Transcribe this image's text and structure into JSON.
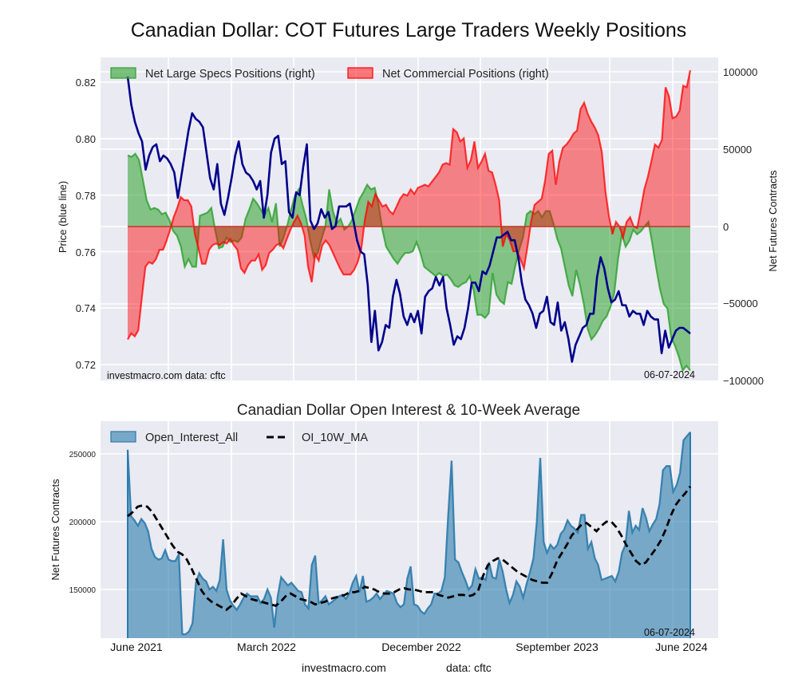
{
  "title": "Canadian Dollar: COT Futures Large Traders Weekly Positions",
  "footer": {
    "site": "investmacro.com",
    "source": "data: cftc"
  },
  "chart_data": [
    {
      "type": "area",
      "title": "Canadian Dollar: COT Futures Large Traders Weekly Positions",
      "ylabel_left": "Price (blue line)",
      "ylabel_right": "Net Futures Contracts",
      "ylim_left": [
        0.715,
        0.829
      ],
      "ylim_right": [
        -100000,
        100000
      ],
      "yticks_left": [
        "0.72",
        "0.74",
        "0.76",
        "0.78",
        "0.80",
        "0.82"
      ],
      "yticks_right": [
        "100000",
        "50000",
        "0",
        "−50000",
        "−100000"
      ],
      "xticks": [
        "June 2021",
        "March 2022",
        "December 2022",
        "September 2023",
        "June 2024"
      ],
      "grid": true,
      "legend": "top-left",
      "annotations": {
        "left": "investmacro.com   data: cftc",
        "right": "06-07-2024"
      },
      "series": [
        {
          "name": "Net Large Specs Positions (right)",
          "kind": "area",
          "color": "#2ca02c",
          "values": [
            46000,
            45000,
            47000,
            43000,
            30000,
            17000,
            11000,
            12000,
            11000,
            8000,
            9000,
            4000,
            -3000,
            -6000,
            -13000,
            -26000,
            -21000,
            -26000,
            -26000,
            7000,
            8000,
            9000,
            12000,
            -2000,
            -14000,
            -13000,
            -7000,
            -10000,
            -9000,
            -10000,
            -7000,
            5000,
            11000,
            18000,
            15000,
            11000,
            7000,
            12000,
            3000,
            15000,
            -13000,
            -7000,
            1000,
            11000,
            20000,
            24000,
            14000,
            5000,
            -9000,
            -20000,
            -17000,
            -8000,
            0,
            24000,
            10000,
            2000,
            5000,
            -2000,
            0,
            4000,
            11000,
            18000,
            22000,
            27000,
            24000,
            25000,
            14000,
            -2000,
            -13000,
            -17000,
            -21000,
            -24000,
            -20000,
            -17000,
            -17000,
            -16000,
            -10000,
            -17000,
            -26000,
            -28000,
            -30000,
            -32000,
            -30000,
            -32000,
            -31000,
            -34000,
            -38000,
            -39000,
            -37000,
            -36000,
            -32000,
            -41000,
            -57000,
            -57000,
            -59000,
            -56000,
            -30000,
            -44000,
            -48000,
            -50000,
            -36000,
            -37000,
            -25000,
            -15000,
            -7000,
            8000,
            10000,
            8000,
            10000,
            6000,
            10000,
            10000,
            2000,
            -8000,
            -14000,
            -26000,
            -38000,
            -45000,
            -28000,
            -38000,
            -50000,
            -66000,
            -73000,
            -70000,
            -66000,
            -61000,
            -58000,
            -52000,
            -43000,
            -21000,
            -5000,
            -13000,
            -9000,
            -2000,
            -5000,
            -3000,
            0,
            3000,
            -11000,
            -26000,
            -40000,
            -50000,
            -53000,
            -72000,
            -77000,
            -84000,
            -93000,
            -90000,
            -93000
          ]
        },
        {
          "name": "Net Commercial Positions (right)",
          "kind": "area",
          "color": "#ff0000",
          "values": [
            -73000,
            -69000,
            -71000,
            -67000,
            -46000,
            -26000,
            -23000,
            -24000,
            -21000,
            -15000,
            -15000,
            -9000,
            -2000,
            6000,
            12000,
            19000,
            17000,
            17000,
            13000,
            -5000,
            -14000,
            -24000,
            -24000,
            -15000,
            -12000,
            -11000,
            -12000,
            -10000,
            -11000,
            -8000,
            -12000,
            -15000,
            -27000,
            -30000,
            -25000,
            -22000,
            -22000,
            -18000,
            -28000,
            -25000,
            -17000,
            -15000,
            -12000,
            -11000,
            -14000,
            -8000,
            -2000,
            3000,
            7000,
            2000,
            -6000,
            -26000,
            -36000,
            -18000,
            -22000,
            -12000,
            -9000,
            -12000,
            -17000,
            -22000,
            -27000,
            -31000,
            -31000,
            -31000,
            -28000,
            -23000,
            -15000,
            4000,
            16000,
            13000,
            21000,
            17000,
            13000,
            14000,
            10000,
            8000,
            13000,
            18000,
            21000,
            20000,
            24000,
            21000,
            25000,
            26000,
            27000,
            26000,
            29000,
            32000,
            35000,
            40000,
            41000,
            40000,
            63000,
            61000,
            55000,
            57000,
            38000,
            43000,
            55000,
            38000,
            42000,
            47000,
            36000,
            35000,
            27000,
            17000,
            -13000,
            -5000,
            -9000,
            -16000,
            -16000,
            -21000,
            -27000,
            -13000,
            3000,
            14000,
            16000,
            18000,
            30000,
            47000,
            49000,
            27000,
            42000,
            51000,
            53000,
            56000,
            60000,
            62000,
            76000,
            80000,
            73000,
            68000,
            64000,
            59000,
            48000,
            23000,
            7000,
            -5000,
            3000,
            0,
            -7000,
            3000,
            6000,
            0,
            -1000,
            11000,
            24000,
            32000,
            42000,
            53000,
            51000,
            56000,
            90000,
            84000,
            70000,
            71000,
            75000,
            91000,
            90000,
            101000
          ]
        },
        {
          "name": "Price (blue line)",
          "kind": "line",
          "color": "#00008b",
          "values": [
            0.822,
            0.812,
            0.806,
            0.802,
            0.799,
            0.789,
            0.794,
            0.797,
            0.798,
            0.792,
            0.794,
            0.793,
            0.791,
            0.788,
            0.779,
            0.787,
            0.795,
            0.803,
            0.809,
            0.807,
            0.806,
            0.804,
            0.795,
            0.786,
            0.782,
            0.791,
            0.777,
            0.773,
            0.779,
            0.786,
            0.794,
            0.799,
            0.791,
            0.788,
            0.787,
            0.785,
            0.782,
            0.785,
            0.772,
            0.78,
            0.795,
            0.8,
            0.801,
            0.791,
            0.792,
            0.774,
            0.772,
            0.781,
            0.78,
            0.79,
            0.798,
            0.771,
            0.768,
            0.77,
            0.775,
            0.772,
            0.774,
            0.768,
            0.769,
            0.776,
            0.776,
            0.776,
            0.777,
            0.771,
            0.764,
            0.76,
            0.759,
            0.748,
            0.728,
            0.739,
            0.725,
            0.728,
            0.734,
            0.733,
            0.744,
            0.75,
            0.745,
            0.737,
            0.734,
            0.738,
            0.735,
            0.739,
            0.731,
            0.744,
            0.746,
            0.747,
            0.751,
            0.748,
            0.751,
            0.74,
            0.734,
            0.727,
            0.73,
            0.729,
            0.733,
            0.74,
            0.749,
            0.749,
            0.746,
            0.753,
            0.752,
            0.755,
            0.76,
            0.765,
            0.765,
            0.766,
            0.767,
            0.764,
            0.764,
            0.758,
            0.749,
            0.743,
            0.741,
            0.738,
            0.733,
            0.738,
            0.739,
            0.744,
            0.735,
            0.734,
            0.742,
            0.732,
            0.735,
            0.729,
            0.721,
            0.727,
            0.73,
            0.733,
            0.734,
            0.738,
            0.738,
            0.751,
            0.758,
            0.754,
            0.747,
            0.742,
            0.743,
            0.746,
            0.741,
            0.741,
            0.737,
            0.739,
            0.738,
            0.738,
            0.734,
            0.739,
            0.737,
            0.736,
            0.736,
            0.724,
            0.732,
            0.726,
            0.729,
            0.732,
            0.733,
            0.733,
            0.732,
            0.731
          ]
        }
      ]
    },
    {
      "type": "area",
      "title": "Canadian Dollar Open Interest & 10-Week Average",
      "ylabel": "Net Futures Contracts",
      "ylim": [
        115000,
        275000
      ],
      "yticks": [
        "250000",
        "200000",
        "150000"
      ],
      "xticks": [
        "June 2021",
        "March 2022",
        "December 2022",
        "September 2023",
        "June 2024"
      ],
      "grid": true,
      "legend": "top-left",
      "annotations": {
        "right": "06-07-2024"
      },
      "series": [
        {
          "name": "Open_Interest_All",
          "kind": "area",
          "color": "#2b7bab",
          "values": [
            253000,
            204000,
            201000,
            197000,
            202000,
            199000,
            193000,
            180000,
            174000,
            172000,
            173000,
            179000,
            172000,
            171000,
            171000,
            176000,
            117000,
            117000,
            119000,
            125000,
            155000,
            162000,
            158000,
            156000,
            150000,
            152000,
            149000,
            157000,
            187000,
            150000,
            142000,
            138000,
            135000,
            139000,
            144000,
            147000,
            145000,
            145000,
            145000,
            140000,
            143000,
            150000,
            144000,
            122000,
            145000,
            159000,
            156000,
            153000,
            155000,
            152000,
            149000,
            148000,
            139000,
            136000,
            168000,
            175000,
            140000,
            142000,
            145000,
            139000,
            141000,
            143000,
            145000,
            146000,
            143000,
            147000,
            155000,
            160000,
            148000,
            160000,
            141000,
            142000,
            144000,
            147000,
            143000,
            146000,
            149000,
            148000,
            147000,
            140000,
            137000,
            139000,
            158000,
            167000,
            139000,
            138000,
            134000,
            132000,
            136000,
            139000,
            147000,
            147000,
            149000,
            159000,
            204000,
            245000,
            172000,
            170000,
            163000,
            157000,
            150000,
            153000,
            165000,
            158000,
            159000,
            157000,
            170000,
            159000,
            158000,
            172000,
            163000,
            150000,
            140000,
            146000,
            156000,
            152000,
            144000,
            154000,
            163000,
            173000,
            200000,
            247000,
            185000,
            177000,
            183000,
            180000,
            183000,
            191000,
            194000,
            201000,
            197000,
            195000,
            192000,
            205000,
            205000,
            180000,
            185000,
            173000,
            168000,
            157000,
            158000,
            159000,
            160000,
            156000,
            163000,
            177000,
            183000,
            208000,
            192000,
            197000,
            194000,
            210000,
            203000,
            193000,
            198000,
            202000,
            213000,
            238000,
            241000,
            241000,
            222000,
            227000,
            236000,
            260000,
            263000,
            266000
          ],
          "note": "subset of traced values"
        },
        {
          "name": "OI_10W_MA",
          "kind": "line",
          "style": "dashed",
          "color": "#000000",
          "values": [
            204000,
            207000,
            211000,
            212000,
            211000,
            207000,
            201000,
            195000,
            189000,
            183000,
            178000,
            176000,
            172000,
            165000,
            157000,
            149000,
            144000,
            141000,
            139000,
            137000,
            135000,
            138000,
            143000,
            147000,
            145000,
            143000,
            142000,
            141000,
            140000,
            139000,
            138000,
            141000,
            145000,
            147000,
            145000,
            143000,
            142000,
            141000,
            139000,
            140000,
            141000,
            143000,
            144000,
            145000,
            146000,
            148000,
            148000,
            149000,
            152000,
            151000,
            150000,
            148000,
            147000,
            147000,
            148000,
            150000,
            151000,
            150000,
            150000,
            149000,
            148000,
            148000,
            148000,
            146000,
            145000,
            144000,
            145000,
            146000,
            146000,
            145000,
            146000,
            149000,
            160000,
            168000,
            171000,
            173000,
            172000,
            169000,
            166000,
            163000,
            161000,
            159000,
            157000,
            156000,
            155000,
            155000,
            162000,
            171000,
            177000,
            183000,
            190000,
            194000,
            198000,
            199000,
            196000,
            193000,
            197000,
            200000,
            200000,
            196000,
            190000,
            183000,
            177000,
            171000,
            168000,
            170000,
            175000,
            180000,
            186000,
            194000,
            204000,
            212000,
            217000,
            221000,
            226000
          ]
        }
      ]
    }
  ],
  "top_chart": {
    "legend": {
      "specs_label": "Net Large Specs Positions (right)",
      "comm_label": "Net Commercial Positions (right)"
    },
    "ylabel_left": "Price (blue line)",
    "ylabel_right": "Net Futures Contracts",
    "yticks_left": [
      "0.82",
      "0.80",
      "0.78",
      "0.76",
      "0.74",
      "0.72"
    ],
    "yticks_right": [
      "100000",
      "50000",
      "0",
      "−50000",
      "−100000"
    ],
    "watermark": "investmacro.com   data: cftc",
    "date": "06-07-2024"
  },
  "bottom_chart": {
    "title": "Canadian Dollar Open Interest & 10-Week Average",
    "legend": {
      "oi_label": "Open_Interest_All",
      "ma_label": "OI_10W_MA"
    },
    "ylabel": "Net Futures Contracts",
    "yticks": [
      "250000",
      "200000",
      "150000"
    ],
    "date": "06-07-2024",
    "xticks": [
      "June 2021",
      "March 2022",
      "December 2022",
      "September 2023",
      "June 2024"
    ]
  }
}
